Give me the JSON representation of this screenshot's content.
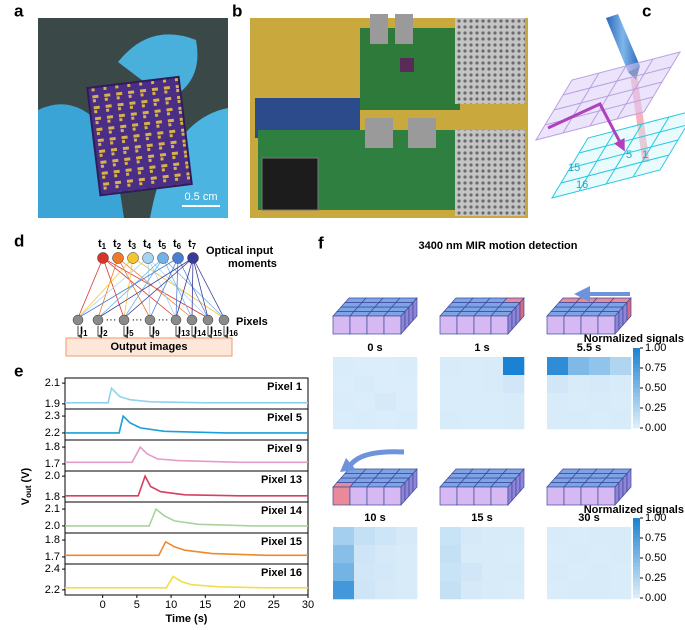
{
  "figure": {
    "panel_labels": [
      "a",
      "b",
      "c",
      "d",
      "e",
      "f"
    ],
    "a": {
      "scale_bar": "0.5 cm"
    },
    "c": {
      "cell_labels": [
        "5",
        "1",
        "15",
        "16"
      ]
    },
    "d": {
      "moments": [
        {
          "base": "t",
          "sub": "1"
        },
        {
          "base": "t",
          "sub": "2"
        },
        {
          "base": "t",
          "sub": "3"
        },
        {
          "base": "t",
          "sub": "4"
        },
        {
          "base": "t",
          "sub": "5"
        },
        {
          "base": "t",
          "sub": "6"
        },
        {
          "base": "t",
          "sub": "7"
        }
      ],
      "moments_label": [
        "Optical input",
        "moments"
      ],
      "pixels_label": "Pixels",
      "ellipsis": "···",
      "currents": [
        {
          "base": "I",
          "sub": "1"
        },
        {
          "base": "I",
          "sub": "2"
        },
        {
          "base": "I",
          "sub": "5"
        },
        {
          "base": "I",
          "sub": "9"
        },
        {
          "base": "I",
          "sub": "13"
        },
        {
          "base": "I",
          "sub": "14"
        },
        {
          "base": "I",
          "sub": "15"
        },
        {
          "base": "I",
          "sub": "16"
        }
      ],
      "output_label": "Output images"
    }
  },
  "chart_data": [
    {
      "type": "line",
      "x_label": "Time (s)",
      "y_label": {
        "base": "V",
        "sub": "out",
        "unit": "(V)"
      },
      "xlim": [
        -5.5,
        30
      ],
      "xticks": [
        0,
        5,
        10,
        15,
        20,
        25,
        30
      ],
      "series": [
        {
          "name": "Pixel 1",
          "color": "#8fd3ea",
          "ylim": [
            1.87,
            2.13
          ],
          "yticks": [
            1.9,
            2.1
          ],
          "x": [
            -5.5,
            0.8,
            1.3,
            2.5,
            4,
            7,
            15,
            30
          ],
          "values": [
            1.91,
            1.91,
            2.05,
            1.97,
            1.94,
            1.92,
            1.91,
            1.91
          ]
        },
        {
          "name": "Pixel 5",
          "color": "#1aa0d8",
          "ylim": [
            2.17,
            2.33
          ],
          "yticks": [
            2.2,
            2.3
          ],
          "x": [
            -5.5,
            2.4,
            3.0,
            4,
            5.5,
            9,
            18,
            30
          ],
          "values": [
            2.2,
            2.2,
            2.3,
            2.26,
            2.23,
            2.21,
            2.2,
            2.2
          ]
        },
        {
          "name": "Pixel 9",
          "color": "#e49cc8",
          "ylim": [
            1.67,
            1.83
          ],
          "yticks": [
            1.7,
            1.8
          ],
          "x": [
            -5.5,
            4.3,
            5.5,
            6.5,
            8,
            11,
            20,
            30
          ],
          "values": [
            1.71,
            1.71,
            1.8,
            1.76,
            1.73,
            1.72,
            1.71,
            1.71
          ]
        },
        {
          "name": "Pixel 13",
          "color": "#d5405e",
          "ylim": [
            1.77,
            2.03
          ],
          "yticks": [
            1.8,
            {
              "value": 2,
              "label": "2.0"
            }
          ],
          "x": [
            -5.5,
            5.2,
            6.2,
            7,
            8.5,
            12,
            20,
            30
          ],
          "values": [
            1.81,
            1.81,
            2.0,
            1.9,
            1.85,
            1.82,
            1.81,
            1.81
          ]
        },
        {
          "name": "Pixel 14",
          "color": "#a8d49c",
          "ylim": [
            1.97,
            2.13
          ],
          "yticks": [
            {
              "value": 2,
              "label": "2.0"
            },
            2.1
          ],
          "x": [
            -5.5,
            6.8,
            7.8,
            9,
            10.5,
            14,
            22,
            30
          ],
          "values": [
            2.0,
            2.0,
            2.1,
            2.06,
            2.03,
            2.01,
            2.0,
            2.0
          ]
        },
        {
          "name": "Pixel 15",
          "color": "#ee8a2a",
          "ylim": [
            1.67,
            1.83
          ],
          "yticks": [
            1.7,
            1.8
          ],
          "x": [
            -5.5,
            8.2,
            9.2,
            10.5,
            12,
            16,
            24,
            30
          ],
          "values": [
            1.71,
            1.71,
            1.79,
            1.76,
            1.74,
            1.72,
            1.71,
            1.71
          ]
        },
        {
          "name": "Pixel 16",
          "color": "#f2de48",
          "ylim": [
            2.17,
            2.43
          ],
          "yticks": [
            2.2,
            2.4
          ],
          "x": [
            -5.5,
            9.3,
            10.3,
            11.5,
            13,
            17,
            24,
            30
          ],
          "values": [
            2.22,
            2.22,
            2.33,
            2.28,
            2.25,
            2.23,
            2.22,
            2.22
          ]
        }
      ]
    },
    {
      "type": "heatmap",
      "title": "3400 nm MIR motion detection",
      "colorbar_label": "Normalized signals",
      "zlim": [
        0,
        1
      ],
      "zticks": [
        {
          "value": 1,
          "label": "1.00"
        },
        {
          "value": 0.75,
          "label": "0.75"
        },
        {
          "value": 0.5,
          "label": "0.50"
        },
        {
          "value": 0.25,
          "label": "0.25"
        },
        {
          "value": 0,
          "label": "0.00"
        }
      ],
      "frames": [
        {
          "time": "0 s",
          "values": [
            [
              0.04,
              0.03,
              0.03,
              0.04
            ],
            [
              0.03,
              0.05,
              0.03,
              0.03
            ],
            [
              0.04,
              0.03,
              0.06,
              0.03
            ],
            [
              0.03,
              0.04,
              0.03,
              0.04
            ]
          ]
        },
        {
          "time": "1 s",
          "values": [
            [
              0.05,
              0.04,
              0.05,
              1.0
            ],
            [
              0.04,
              0.04,
              0.05,
              0.08
            ],
            [
              0.04,
              0.04,
              0.04,
              0.05
            ],
            [
              0.05,
              0.04,
              0.04,
              0.05
            ]
          ]
        },
        {
          "time": "5.5 s",
          "values": [
            [
              0.9,
              0.5,
              0.4,
              0.25
            ],
            [
              0.08,
              0.05,
              0.06,
              0.05
            ],
            [
              0.05,
              0.04,
              0.05,
              0.04
            ],
            [
              0.05,
              0.05,
              0.04,
              0.05
            ]
          ]
        },
        {
          "time": "10 s",
          "values": [
            [
              0.3,
              0.15,
              0.1,
              0.06
            ],
            [
              0.45,
              0.1,
              0.06,
              0.05
            ],
            [
              0.55,
              0.08,
              0.07,
              0.05
            ],
            [
              0.8,
              0.1,
              0.06,
              0.05
            ]
          ]
        },
        {
          "time": "15 s",
          "values": [
            [
              0.12,
              0.06,
              0.05,
              0.05
            ],
            [
              0.15,
              0.05,
              0.05,
              0.04
            ],
            [
              0.12,
              0.08,
              0.05,
              0.05
            ],
            [
              0.15,
              0.06,
              0.05,
              0.04
            ]
          ]
        },
        {
          "time": "30 s",
          "values": [
            [
              0.05,
              0.04,
              0.05,
              0.05
            ],
            [
              0.04,
              0.05,
              0.04,
              0.05
            ],
            [
              0.05,
              0.04,
              0.05,
              0.04
            ],
            [
              0.04,
              0.05,
              0.05,
              0.04
            ]
          ]
        }
      ]
    }
  ]
}
